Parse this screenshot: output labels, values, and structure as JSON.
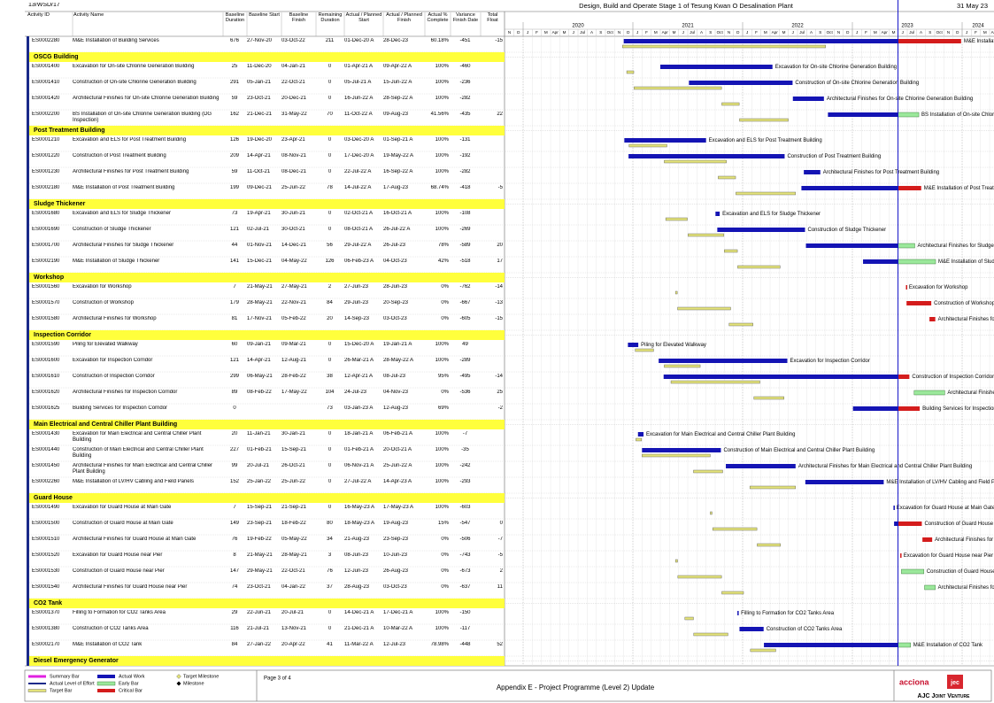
{
  "header": {
    "ref": "13/WSD/17",
    "title": "Design, Build and Operate Stage 1 of Tesung Kwan O Desalination Plant",
    "data_date": "31 May 23"
  },
  "columns": [
    "Activity ID",
    "Activity Name",
    "Baseline Duration",
    "Baseline Start",
    "Baseline Finish",
    "Remaining Duration",
    "Actual / Planned Start",
    "Actual / Planned Finish",
    "Actual % Complete",
    "Variance Finish Date",
    "Total Float"
  ],
  "timeline": {
    "years": [
      "2020",
      "2021",
      "2022",
      "2023",
      "2024"
    ],
    "lead_months": [
      "N",
      "D"
    ],
    "months": [
      "J",
      "F",
      "M",
      "Apr",
      "M",
      "J",
      "Jul",
      "A",
      "S",
      "Oct",
      "N",
      "D"
    ]
  },
  "lead_activities": [
    {
      "id": "ES0002280",
      "name": "M&E Installation of Building Services",
      "baseline_duration": "676",
      "baseline_start": "27-Nov-20",
      "baseline_finish": "03-Oct-22",
      "remaining_duration": "211",
      "start": "01-Dec-20 A",
      "finish": "28-Dec-23",
      "complete": "60.18%",
      "variance": "-451",
      "float": "-15"
    }
  ],
  "groups": [
    {
      "name": "OSCG Building",
      "activities": [
        {
          "id": "ES0001400",
          "name": "Excavation for On-site Chlorine Generation Building",
          "baseline_duration": "25",
          "baseline_start": "11-Dec-20",
          "baseline_finish": "04-Jan-21",
          "remaining_duration": "0",
          "start": "01-Apr-21 A",
          "finish": "09-Apr-22 A",
          "complete": "100%",
          "variance": "-460"
        },
        {
          "id": "ES0001410",
          "name": "Construction of On-site Chlorine Generation Building",
          "baseline_duration": "291",
          "baseline_start": "05-Jan-21",
          "baseline_finish": "22-Oct-21",
          "remaining_duration": "0",
          "start": "05-Jul-21 A",
          "finish": "15-Jun-22 A",
          "complete": "100%",
          "variance": "-236"
        },
        {
          "id": "ES0001420",
          "name": "Architectural Finishes for On-site Chlorine Generation Building",
          "baseline_duration": "59",
          "baseline_start": "23-Oct-21",
          "baseline_finish": "20-Dec-21",
          "remaining_duration": "0",
          "start": "16-Jun-22 A",
          "finish": "28-Sep-22 A",
          "complete": "100%",
          "variance": "-282"
        },
        {
          "id": "ES0002200",
          "name": "BS Installation of On-site Chlorine Generation Building (DG Inspection)",
          "baseline_duration": "162",
          "baseline_start": "21-Dec-21",
          "baseline_finish": "31-May-22",
          "remaining_duration": "70",
          "start": "11-Oct-22 A",
          "finish": "09-Aug-23",
          "complete": "41.56%",
          "variance": "-435",
          "float": "22"
        }
      ]
    },
    {
      "name": "Post Treatment Building",
      "activities": [
        {
          "id": "ES0001210",
          "name": "Excavation and ELS for Post Treatment Building",
          "baseline_duration": "126",
          "baseline_start": "19-Dec-20",
          "baseline_finish": "23-Apr-21",
          "remaining_duration": "0",
          "start": "03-Dec-20 A",
          "finish": "01-Sep-21 A",
          "complete": "100%",
          "variance": "-131"
        },
        {
          "id": "ES0001220",
          "name": "Construction of Post Treatment Building",
          "baseline_duration": "209",
          "baseline_start": "14-Apr-21",
          "baseline_finish": "08-Nov-21",
          "remaining_duration": "0",
          "start": "17-Dec-20 A",
          "finish": "19-May-22 A",
          "complete": "100%",
          "variance": "-192"
        },
        {
          "id": "ES0001230",
          "name": "Architectural Finishes for Post Treatment Building",
          "baseline_duration": "59",
          "baseline_start": "11-Oct-21",
          "baseline_finish": "08-Dec-21",
          "remaining_duration": "0",
          "start": "22-Jul-22 A",
          "finish": "16-Sep-22 A",
          "complete": "100%",
          "variance": "-282"
        },
        {
          "id": "ES0002180",
          "name": "M&E Installation of Post Treatment Building",
          "baseline_duration": "199",
          "baseline_start": "09-Dec-21",
          "baseline_finish": "25-Jun-22",
          "remaining_duration": "78",
          "start": "14-Jul-22 A",
          "finish": "17-Aug-23",
          "complete": "68.74%",
          "variance": "-418",
          "float": "-5"
        }
      ]
    },
    {
      "name": "Sludge Thickener",
      "activities": [
        {
          "id": "ES0001680",
          "name": "Excavation and ELS for Sludge Thickener",
          "baseline_duration": "73",
          "baseline_start": "19-Apr-21",
          "baseline_finish": "30-Jun-21",
          "remaining_duration": "0",
          "start": "02-Oct-21 A",
          "finish": "16-Oct-21 A",
          "complete": "100%",
          "variance": "-108"
        },
        {
          "id": "ES0001690",
          "name": "Construction of Sludge Thickener",
          "baseline_duration": "121",
          "baseline_start": "02-Jul-21",
          "baseline_finish": "30-Oct-21",
          "remaining_duration": "0",
          "start": "08-Oct-21 A",
          "finish": "26-Jul-22 A",
          "complete": "100%",
          "variance": "-269"
        },
        {
          "id": "ES0001700",
          "name": "Architectural Finishes for Sludge Thickener",
          "baseline_duration": "44",
          "baseline_start": "01-Nov-21",
          "baseline_finish": "14-Dec-21",
          "remaining_duration": "56",
          "start": "29-Jul-22 A",
          "finish": "26-Jul-23",
          "complete": "78%",
          "variance": "-589",
          "float": "20"
        },
        {
          "id": "ES0002190",
          "name": "M&E Installation of Sludge Thickener",
          "baseline_duration": "141",
          "baseline_start": "15-Dec-21",
          "baseline_finish": "04-May-22",
          "remaining_duration": "126",
          "start": "06-Feb-23 A",
          "finish": "04-Oct-23",
          "complete": "42%",
          "variance": "-518",
          "float": "17"
        }
      ]
    },
    {
      "name": "Workshop",
      "activities": [
        {
          "id": "ES0001560",
          "name": "Excavation for Workshop",
          "baseline_duration": "7",
          "baseline_start": "21-May-21",
          "baseline_finish": "27-May-21",
          "remaining_duration": "2",
          "start": "27-Jun-23",
          "finish": "28-Jun-23",
          "complete": "0%",
          "variance": "-762",
          "float": "-14"
        },
        {
          "id": "ES0001570",
          "name": "Construction of Workshop",
          "baseline_duration": "179",
          "baseline_start": "28-May-21",
          "baseline_finish": "22-Nov-21",
          "remaining_duration": "84",
          "start": "29-Jun-23",
          "finish": "20-Sep-23",
          "complete": "0%",
          "variance": "-667",
          "float": "-13"
        },
        {
          "id": "ES0001580",
          "name": "Architectural Finishes for Workshop",
          "baseline_duration": "81",
          "baseline_start": "17-Nov-21",
          "baseline_finish": "05-Feb-22",
          "remaining_duration": "20",
          "start": "14-Sep-23",
          "finish": "03-Oct-23",
          "complete": "0%",
          "variance": "-605",
          "float": "-15"
        }
      ]
    },
    {
      "name": "Inspection Corridor",
      "activities": [
        {
          "id": "ES0001590",
          "name": "Piling for Elevated Walkway",
          "baseline_duration": "60",
          "baseline_start": "09-Jan-21",
          "baseline_finish": "09-Mar-21",
          "remaining_duration": "0",
          "start": "15-Dec-20 A",
          "finish": "19-Jan-21 A",
          "complete": "100%",
          "variance": "49"
        },
        {
          "id": "ES0001600",
          "name": "Excavation for Inspection Corridor",
          "baseline_duration": "121",
          "baseline_start": "14-Apr-21",
          "baseline_finish": "12-Aug-21",
          "remaining_duration": "0",
          "start": "26-Mar-21 A",
          "finish": "28-May-22 A",
          "complete": "100%",
          "variance": "-289"
        },
        {
          "id": "ES0001610",
          "name": "Construction of Inspection Corridor",
          "baseline_duration": "299",
          "baseline_start": "06-May-21",
          "baseline_finish": "28-Feb-22",
          "remaining_duration": "38",
          "start": "12-Apr-21 A",
          "finish": "08-Jul-23",
          "complete": "95%",
          "variance": "-495",
          "float": "-14"
        },
        {
          "id": "ES0001620",
          "name": "Architectural Finishes for Inspection Corridor",
          "baseline_duration": "89",
          "baseline_start": "08-Feb-22",
          "baseline_finish": "17-May-22",
          "remaining_duration": "104",
          "start": "24-Jul-23",
          "finish": "04-Nov-23",
          "complete": "0%",
          "variance": "-536",
          "float": "25"
        },
        {
          "id": "ES0001625",
          "name": "Building Services for Inspection Corridor",
          "baseline_duration": "0",
          "remaining_duration": "73",
          "start": "03-Jan-23 A",
          "finish": "12-Aug-23",
          "complete": "69%",
          "float": "-2"
        }
      ]
    },
    {
      "name": "Main Electrical and Central Chiller Plant Building",
      "activities": [
        {
          "id": "ES0001430",
          "name": "Excavation for Main Electrical and Central Chiller Plant Building",
          "baseline_duration": "20",
          "baseline_start": "11-Jan-21",
          "baseline_finish": "30-Jan-21",
          "remaining_duration": "0",
          "start": "18-Jan-21 A",
          "finish": "06-Feb-21 A",
          "complete": "100%",
          "variance": "-7"
        },
        {
          "id": "ES0001440",
          "name": "Construction of Main Electrical and Central Chiller Plant Building",
          "baseline_duration": "227",
          "baseline_start": "01-Feb-21",
          "baseline_finish": "15-Sep-21",
          "remaining_duration": "0",
          "start": "01-Feb-21 A",
          "finish": "20-Oct-21 A",
          "complete": "100%",
          "variance": "-35"
        },
        {
          "id": "ES0001450",
          "name": "Architectural Finishes for Main Electrical and Central Chiller Plant Building",
          "baseline_duration": "99",
          "baseline_start": "20-Jul-21",
          "baseline_finish": "26-Oct-21",
          "remaining_duration": "0",
          "start": "06-Nov-21 A",
          "finish": "25-Jun-22 A",
          "complete": "100%",
          "variance": "-242"
        },
        {
          "id": "ES0002260",
          "name": "M&E Installation of LV/HV Cabling and Field Panels",
          "baseline_duration": "152",
          "baseline_start": "25-Jan-22",
          "baseline_finish": "25-Jun-22",
          "remaining_duration": "0",
          "start": "27-Jul-22 A",
          "finish": "14-Apr-23 A",
          "complete": "100%",
          "variance": "-293"
        }
      ]
    },
    {
      "name": "Guard House",
      "activities": [
        {
          "id": "ES0001490",
          "name": "Excavation for Guard House at Main Gate",
          "baseline_duration": "7",
          "baseline_start": "15-Sep-21",
          "baseline_finish": "21-Sep-21",
          "remaining_duration": "0",
          "start": "16-May-23 A",
          "finish": "17-May-23 A",
          "complete": "100%",
          "variance": "-603"
        },
        {
          "id": "ES0001500",
          "name": "Construction of Guard House at Main Gate",
          "baseline_duration": "149",
          "baseline_start": "23-Sep-21",
          "baseline_finish": "18-Feb-22",
          "remaining_duration": "80",
          "start": "18-May-23 A",
          "finish": "19-Aug-23",
          "complete": "15%",
          "variance": "-547",
          "float": "0"
        },
        {
          "id": "ES0001510",
          "name": "Architectural Finishes for Guard House at Main Gate",
          "baseline_duration": "76",
          "baseline_start": "19-Feb-22",
          "baseline_finish": "05-May-22",
          "remaining_duration": "34",
          "start": "21-Aug-23",
          "finish": "23-Sep-23",
          "complete": "0%",
          "variance": "-506",
          "float": "-7"
        },
        {
          "id": "ES0001520",
          "name": "Excavation for Guard House near Pier",
          "baseline_duration": "8",
          "baseline_start": "21-May-21",
          "baseline_finish": "28-May-21",
          "remaining_duration": "3",
          "start": "08-Jun-23",
          "finish": "10-Jun-23",
          "complete": "0%",
          "variance": "-743",
          "float": "-5"
        },
        {
          "id": "ES0001530",
          "name": "Construction of Guard House near Pier",
          "baseline_duration": "147",
          "baseline_start": "29-May-21",
          "baseline_finish": "22-Oct-21",
          "remaining_duration": "76",
          "start": "12-Jun-23",
          "finish": "26-Aug-23",
          "complete": "0%",
          "variance": "-673",
          "float": "2"
        },
        {
          "id": "ES0001540",
          "name": "Architectural Finishes for Guard House near Pier",
          "baseline_duration": "74",
          "baseline_start": "23-Oct-21",
          "baseline_finish": "04-Jan-22",
          "remaining_duration": "37",
          "start": "28-Aug-23",
          "finish": "03-Oct-23",
          "complete": "0%",
          "variance": "-637",
          "float": "11"
        }
      ]
    },
    {
      "name": "CO2 Tank",
      "activities": [
        {
          "id": "ES0001370",
          "name": "Filling to Formation for CO2 Tanks Area",
          "baseline_duration": "29",
          "baseline_start": "22-Jun-21",
          "baseline_finish": "20-Jul-21",
          "remaining_duration": "0",
          "start": "14-Dec-21 A",
          "finish": "17-Dec-21 A",
          "complete": "100%",
          "variance": "-150"
        },
        {
          "id": "ES0001380",
          "name": "Construction of CO2 Tanks Area",
          "baseline_duration": "116",
          "baseline_start": "21-Jul-21",
          "baseline_finish": "13-Nov-21",
          "remaining_duration": "0",
          "start": "21-Dec-21 A",
          "finish": "10-Mar-22 A",
          "complete": "100%",
          "variance": "-117"
        },
        {
          "id": "ES0002170",
          "name": "M&E Installation of CO2 Tank",
          "baseline_duration": "84",
          "baseline_start": "27-Jan-22",
          "baseline_finish": "20-Apr-22",
          "remaining_duration": "41",
          "start": "11-Mar-22 A",
          "finish": "12-Jul-23",
          "complete": "78.98%",
          "variance": "-448",
          "float": "52"
        }
      ]
    },
    {
      "name": "Diesel Emergency Generator",
      "activities": []
    }
  ],
  "legend": [
    "Summary Bar",
    "Actual Level of Effort",
    "Target Bar",
    "Actual Work",
    "Early Bar",
    "Critical Bar",
    "Target Milestone",
    "Milestone"
  ],
  "footer": {
    "page": "Page 3 of 4",
    "caption": "Appendix E - Project Programme (Level 2) Update",
    "company": "acciona",
    "partner": "jec",
    "joint_venture": "AJC Joint Venture"
  }
}
